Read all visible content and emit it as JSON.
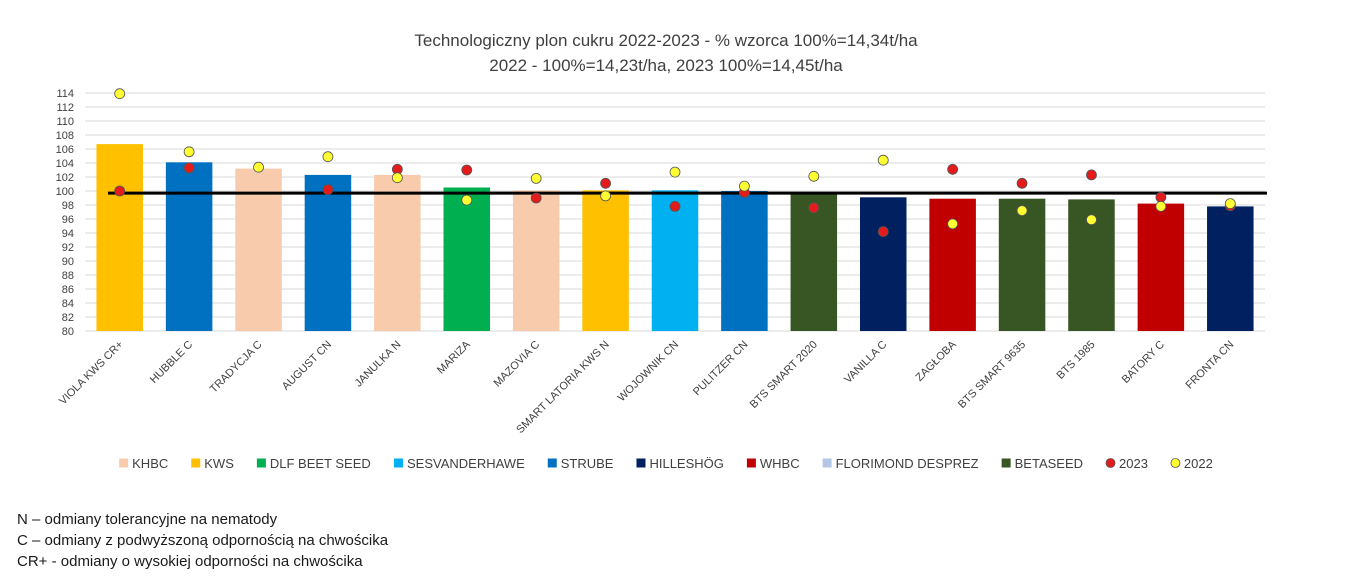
{
  "chart_data": {
    "type": "bar",
    "title": "Technologiczny plon cukru 2022-2023 - % wzorca 100%=14,34t/ha",
    "subtitle": "2022 - 100%=14,23t/ha, 2023 100%=14,45t/ha",
    "ylim": [
      80,
      114
    ],
    "ytick_step": 2,
    "reference_line": 99.7,
    "categories": [
      "VIOLA KWS CR+",
      "HUBBLE C",
      "TRADYCJA C",
      "AUGUST CN",
      "JANULKA N",
      "MARIZA",
      "MAZOVIA C",
      "SMART LATORIA KWS N",
      "WOJOWNIK CN",
      "PULITZER CN",
      "BTS SMART 2020",
      "VANILLA C",
      "ZAGŁOBA",
      "BTS SMART 9635",
      "BTS 1985",
      "BATORY C",
      "FRONTA CN"
    ],
    "values": [
      106.7,
      104.1,
      103.2,
      102.3,
      102.3,
      100.5,
      100.1,
      100.1,
      100.1,
      100.0,
      99.8,
      99.1,
      98.9,
      98.9,
      98.8,
      98.2,
      97.8
    ],
    "bar_brand": [
      "KWS",
      "STRUBE",
      "KHBC",
      "STRUBE",
      "KHBC",
      "DLF BEET SEED",
      "KHBC",
      "KWS",
      "SESVANDERHAWE",
      "STRUBE",
      "BETASEED",
      "HILLESHÖG",
      "WHBC",
      "BETASEED",
      "BETASEED",
      "WHBC",
      "HILLESHÖG"
    ],
    "series": [
      {
        "name": "2023",
        "type": "scatter",
        "color": "#e41b1b",
        "values": [
          100.0,
          103.3,
          null,
          100.2,
          103.1,
          103.0,
          99.0,
          101.1,
          97.8,
          99.8,
          97.6,
          94.2,
          103.1,
          101.1,
          102.3,
          99.1,
          97.9
        ]
      },
      {
        "name": "2022",
        "type": "scatter",
        "color": "#ffff33",
        "values": [
          113.9,
          105.6,
          103.4,
          104.9,
          101.9,
          98.7,
          101.8,
          99.3,
          102.7,
          100.7,
          102.1,
          104.4,
          95.3,
          97.2,
          95.9,
          97.8,
          98.2
        ]
      }
    ],
    "brands": [
      {
        "name": "KHBC",
        "color": "#f8cbad"
      },
      {
        "name": "KWS",
        "color": "#ffc000"
      },
      {
        "name": "DLF BEET SEED",
        "color": "#00b050"
      },
      {
        "name": "SESVANDERHAWE",
        "color": "#00b0f0"
      },
      {
        "name": "STRUBE",
        "color": "#0070c0"
      },
      {
        "name": "HILLESHÖG",
        "color": "#002060"
      },
      {
        "name": "WHBC",
        "color": "#c00000"
      },
      {
        "name": "FLORIMOND DESPREZ",
        "color": "#b4c7e7"
      },
      {
        "name": "BETASEED",
        "color": "#375623"
      }
    ],
    "grid": true,
    "legend_position": "bottom"
  },
  "notes": [
    "N – odmiany tolerancyjne na nematody",
    "C – odmiany z podwyższoną odpornością na chwościka",
    "CR+ - odmiany o wysokiej odporności na chwościka"
  ]
}
